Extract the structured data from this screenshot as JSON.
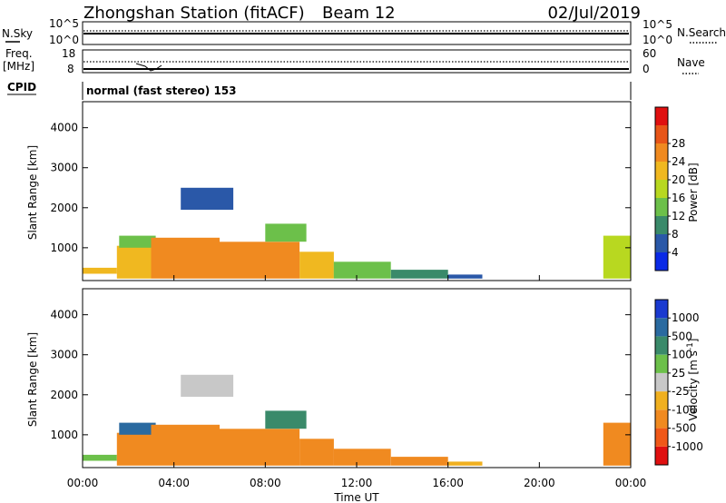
{
  "header": {
    "station": "Zhongshan Station (fitACF)",
    "beam": "Beam 12",
    "date": "02/Jul/2019"
  },
  "top_panels": {
    "nsky_label": "N.Sky",
    "nsearch_label": "N.Search",
    "freq_label_1": "Freq.",
    "freq_label_2": "[MHz]",
    "nave_label": "Nave",
    "cpid_label": "CPID",
    "cpid_value": "normal (fast stereo) 153",
    "noise_left_ticks": [
      "10^5",
      "10^0"
    ],
    "noise_right_ticks": [
      "10^5",
      "10^0"
    ],
    "freq_left_ticks": [
      "18",
      "8"
    ],
    "nave_right_ticks": [
      "60",
      "0"
    ]
  },
  "power_scale": {
    "label": "Power [dB]",
    "ticks": [
      "4",
      "8",
      "12",
      "16",
      "20",
      "24",
      "28"
    ],
    "colors": [
      "#0a2ae6",
      "#2a58a8",
      "#3a8a6a",
      "#6cc04a",
      "#b8d820",
      "#f0b820",
      "#f08a20",
      "#e85518",
      "#e01010"
    ]
  },
  "velocity_scale": {
    "label": "Velocity [m s",
    "label_sup": "-1",
    "label_end": "]",
    "ticks": [
      "1000",
      "500",
      "100",
      "25",
      "-25",
      "-100",
      "-500",
      "-1000"
    ],
    "colors": [
      "#1a3ad0",
      "#2a6aa0",
      "#3a8a6a",
      "#6cc04a",
      "#c8c8c8",
      "#f0b020",
      "#f08a20",
      "#f05818",
      "#e01010"
    ]
  },
  "axes": {
    "ylabel": "Slant Range [km]",
    "yticks": [
      "1000",
      "2000",
      "3000",
      "4000"
    ],
    "xlabel": "Time UT",
    "xticks": [
      "00:00",
      "04:00",
      "08:00",
      "12:00",
      "16:00",
      "20:00",
      "00:00"
    ]
  },
  "chart_data": [
    {
      "type": "heatmap",
      "title": "Power",
      "x_unit": "hours UT",
      "x_range": [
        0,
        24
      ],
      "ylabel": "Slant Range [km]",
      "ylim": [
        180,
        4650
      ],
      "colorbar": {
        "label": "Power [dB]",
        "ticks": [
          4,
          8,
          12,
          16,
          20,
          24,
          28
        ]
      },
      "blocks": [
        {
          "x": [
            0.0,
            1.5
          ],
          "y": [
            350,
            500
          ],
          "v": 20
        },
        {
          "x": [
            1.5,
            3.0
          ],
          "y": [
            230,
            1050
          ],
          "v": 22
        },
        {
          "x": [
            1.6,
            3.2
          ],
          "y": [
            1000,
            1300
          ],
          "v": 14
        },
        {
          "x": [
            3.0,
            6.0
          ],
          "y": [
            230,
            1250
          ],
          "v": 26
        },
        {
          "x": [
            6.0,
            9.5
          ],
          "y": [
            230,
            1150
          ],
          "v": 27
        },
        {
          "x": [
            8.0,
            9.8
          ],
          "y": [
            1150,
            1600
          ],
          "v": 13
        },
        {
          "x": [
            9.5,
            11.0
          ],
          "y": [
            230,
            900
          ],
          "v": 21
        },
        {
          "x": [
            11.0,
            13.5
          ],
          "y": [
            230,
            650
          ],
          "v": 15
        },
        {
          "x": [
            13.5,
            16.0
          ],
          "y": [
            230,
            450
          ],
          "v": 11
        },
        {
          "x": [
            16.0,
            17.5
          ],
          "y": [
            230,
            330
          ],
          "v": 6
        },
        {
          "x": [
            4.3,
            6.6
          ],
          "y": [
            1950,
            2500
          ],
          "v": 5
        },
        {
          "x": [
            22.8,
            24.0
          ],
          "y": [
            230,
            1300
          ],
          "v": 19
        }
      ]
    },
    {
      "type": "heatmap",
      "title": "Velocity",
      "x_unit": "hours UT",
      "x_range": [
        0,
        24
      ],
      "ylabel": "Slant Range [km]",
      "ylim": [
        180,
        4650
      ],
      "colorbar": {
        "label": "Velocity [m s-1]",
        "ticks": [
          1000,
          500,
          100,
          25,
          -25,
          -100,
          -500,
          -1000
        ]
      },
      "blocks": [
        {
          "x": [
            0.0,
            1.5
          ],
          "y": [
            350,
            500
          ],
          "v": 60
        },
        {
          "x": [
            1.5,
            3.0
          ],
          "y": [
            230,
            1050
          ],
          "v": -200
        },
        {
          "x": [
            1.6,
            3.2
          ],
          "y": [
            1000,
            1300
          ],
          "v": 600
        },
        {
          "x": [
            3.0,
            6.0
          ],
          "y": [
            230,
            1250
          ],
          "v": -300
        },
        {
          "x": [
            6.0,
            9.5
          ],
          "y": [
            230,
            1150
          ],
          "v": -150
        },
        {
          "x": [
            8.0,
            9.8
          ],
          "y": [
            1150,
            1600
          ],
          "v": 400
        },
        {
          "x": [
            9.5,
            11.0
          ],
          "y": [
            230,
            900
          ],
          "v": -120
        },
        {
          "x": [
            11.0,
            13.5
          ],
          "y": [
            230,
            650
          ],
          "v": -250
        },
        {
          "x": [
            13.5,
            16.0
          ],
          "y": [
            230,
            450
          ],
          "v": -180
        },
        {
          "x": [
            16.0,
            17.5
          ],
          "y": [
            230,
            330
          ],
          "v": -60
        },
        {
          "x": [
            4.3,
            6.6
          ],
          "y": [
            1950,
            2500
          ],
          "v": 10
        },
        {
          "x": [
            22.8,
            24.0
          ],
          "y": [
            230,
            1300
          ],
          "v": -350
        }
      ]
    }
  ]
}
